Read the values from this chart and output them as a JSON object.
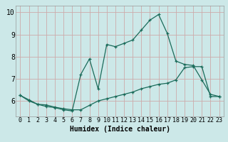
{
  "xlabel": "Humidex (Indice chaleur)",
  "bg_color": "#cce8e8",
  "plot_bg_color": "#cce8e8",
  "grid_color": "#ccaaaa",
  "line_color": "#1a6b5a",
  "xlim": [
    -0.5,
    23.5
  ],
  "ylim": [
    5.3,
    10.3
  ],
  "yticks": [
    6,
    7,
    8,
    9,
    10
  ],
  "xticks": [
    0,
    1,
    2,
    3,
    4,
    5,
    6,
    7,
    8,
    9,
    10,
    11,
    12,
    13,
    14,
    15,
    16,
    17,
    18,
    19,
    20,
    21,
    22,
    23
  ],
  "line1_x": [
    0,
    1,
    2,
    3,
    4,
    5,
    6,
    7,
    8,
    9,
    10,
    11,
    12,
    13,
    14,
    15,
    16,
    17,
    18,
    19,
    20,
    21,
    22,
    23
  ],
  "line1_y": [
    6.25,
    6.0,
    5.85,
    5.75,
    5.7,
    5.6,
    5.55,
    7.2,
    7.9,
    6.55,
    8.55,
    8.45,
    8.6,
    8.75,
    9.2,
    9.65,
    9.9,
    9.05,
    7.8,
    7.65,
    7.6,
    6.95,
    6.3,
    6.2
  ],
  "line2_x": [
    0,
    1,
    2,
    3,
    4,
    5,
    6,
    7,
    8,
    9,
    10,
    11,
    12,
    13,
    14,
    15,
    16,
    17,
    18,
    19,
    20,
    21,
    22,
    23
  ],
  "line2_y": [
    6.25,
    6.05,
    5.85,
    5.82,
    5.72,
    5.65,
    5.6,
    5.6,
    5.8,
    6.0,
    6.1,
    6.2,
    6.3,
    6.4,
    6.55,
    6.65,
    6.75,
    6.8,
    6.95,
    7.5,
    7.55,
    7.55,
    6.2,
    6.2
  ],
  "xlabel_fontsize": 7,
  "tick_fontsize": 6
}
